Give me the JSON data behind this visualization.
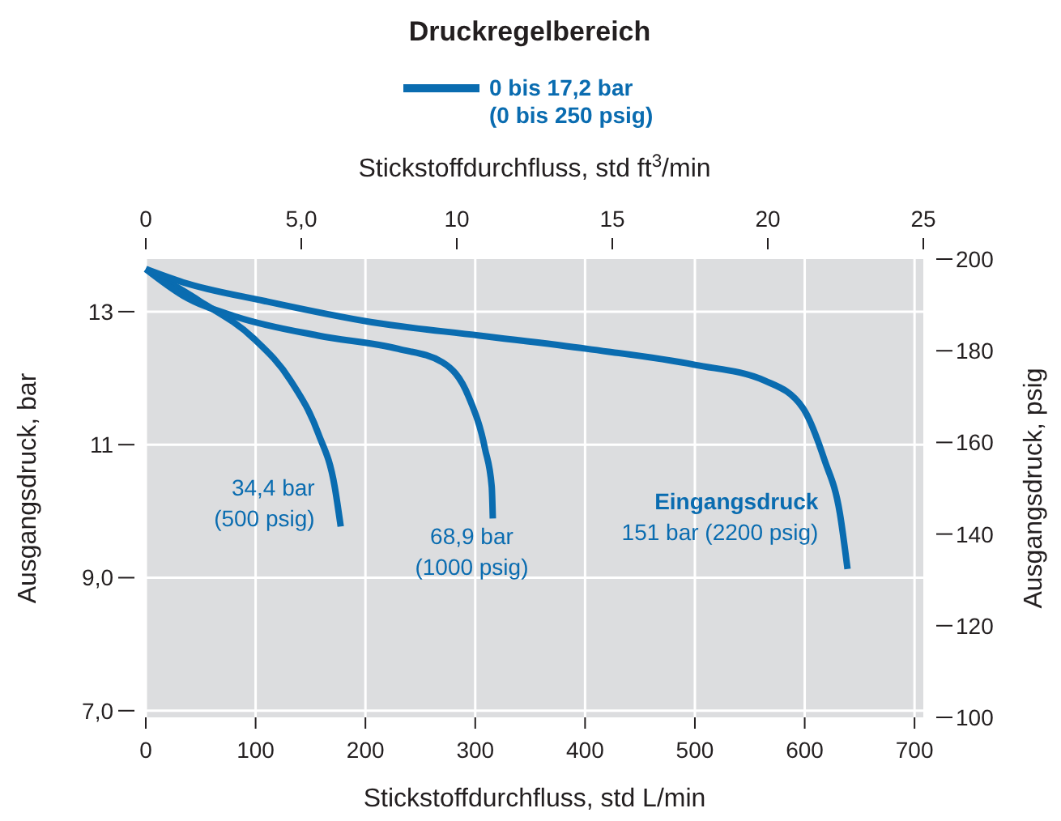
{
  "chart_data": {
    "type": "line",
    "title": "Druckregelbereich",
    "subtitle": "0 bis 17,2 bar\n(0 bis 250 psig)",
    "xlabel": "Stickstoffdurchfluss, std L/min",
    "x2label": "Stickstoffdurchfluss, std ft$^{3}$/min",
    "ylabel": "Ausgangsdruck, bar",
    "y2label": "Ausgangsdruck, psig",
    "xlim": [
      0,
      708
    ],
    "xticks": [
      0,
      100,
      200,
      300,
      400,
      500,
      600,
      700
    ],
    "x2lim": [
      0,
      25
    ],
    "x2ticks": [
      0,
      {
        "value": 5,
        "label": "5,0"
      },
      10,
      15,
      20,
      25
    ],
    "ylim": [
      6.9,
      13.79
    ],
    "yticks": [
      {
        "value": 7,
        "label": "7,0"
      },
      {
        "value": 9,
        "label": "9,0"
      },
      11,
      13
    ],
    "y2lim": [
      100,
      200
    ],
    "y2ticks": [
      100,
      120,
      140,
      160,
      180,
      200
    ],
    "grid": true,
    "line_style": "solid",
    "marker": "none",
    "series": [
      {
        "name": "34,4 bar\n(500 psig)",
        "color": "#0a6cb0",
        "x": [
          0,
          49,
          98,
          132,
          157,
          172,
          177.5
        ],
        "values": [
          13.64,
          13.16,
          12.6,
          11.96,
          11.17,
          10.37,
          9.77
        ]
      },
      {
        "name": "68,9 bar\n(1000 psig)",
        "color": "#0a6cb0",
        "x": [
          0,
          34,
          83,
          157,
          230,
          270,
          294,
          309,
          315,
          316
        ],
        "values": [
          13.64,
          13.24,
          12.92,
          12.64,
          12.44,
          12.24,
          11.72,
          10.93,
          10.37,
          9.89
        ]
      },
      {
        "name": "151 bar (2200 psig)",
        "color": "#0a6cb0",
        "x": [
          0,
          34,
          108,
          206,
          304,
          402,
          500,
          564,
          598,
          618,
          632,
          639
        ],
        "values": [
          13.64,
          13.44,
          13.16,
          12.84,
          12.64,
          12.44,
          12.2,
          11.96,
          11.56,
          10.77,
          9.97,
          9.13
        ]
      }
    ],
    "annotations": [
      "Eingangsdruck"
    ]
  }
}
